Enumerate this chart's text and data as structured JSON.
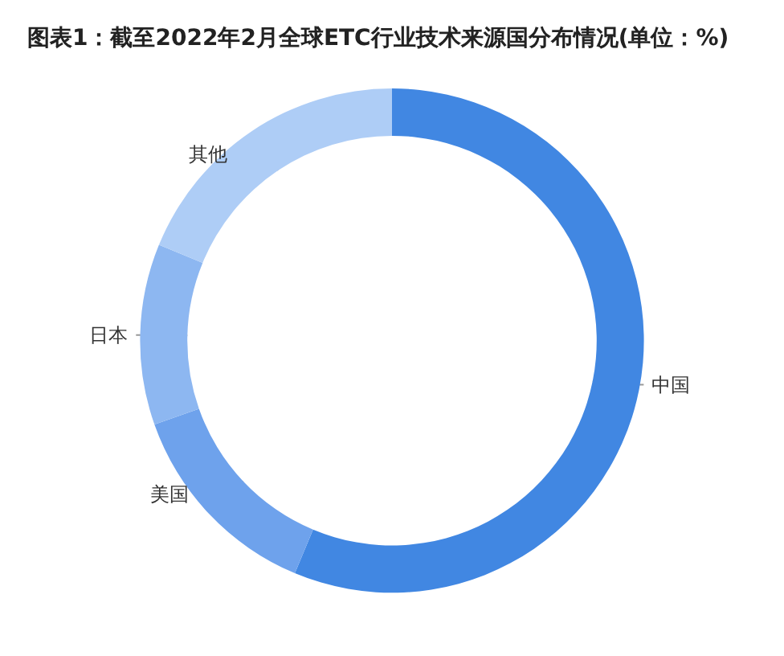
{
  "chart_data": {
    "type": "donut",
    "title": "图表1：截至2022年2月全球ETC行业技术来源国分布情况(单位：%)",
    "categories": [
      "中国",
      "美国",
      "日本",
      "其他"
    ],
    "values": [
      56.3,
      13.3,
      11.6,
      18.8
    ],
    "colors": [
      "#4187e2",
      "#6ea2ec",
      "#8db7f1",
      "#aecdf6"
    ],
    "legend": false
  }
}
